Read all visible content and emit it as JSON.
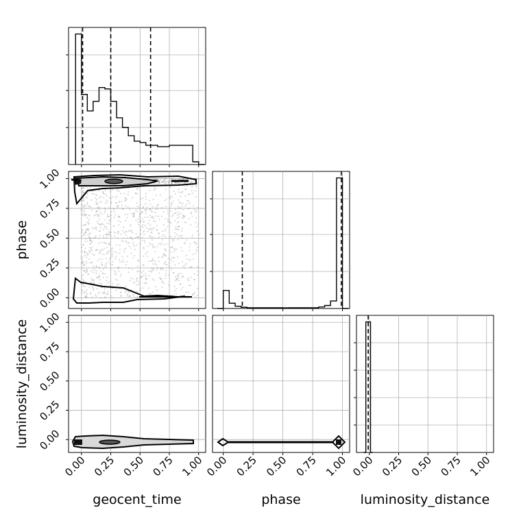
{
  "chart_data": {
    "type": "corner",
    "parameters": [
      "geocent_time",
      "phase",
      "luminosity_distance"
    ],
    "axis_labels": {
      "bottom": [
        "geocent_time",
        "phase",
        "luminosity_distance"
      ],
      "left": [
        "phase",
        "luminosity_distance"
      ]
    },
    "tick_values": [
      0.0,
      0.25,
      0.5,
      0.75,
      1.0
    ],
    "tick_labels": [
      "0.00",
      "0.25",
      "0.50",
      "0.75",
      "1.00"
    ],
    "grid": true,
    "histograms": [
      {
        "parameter": "geocent_time",
        "xlim": [
          -0.11,
          1.06
        ],
        "bin_edges": [
          -0.05,
          0.0,
          0.05,
          0.1,
          0.15,
          0.2,
          0.25,
          0.3,
          0.35,
          0.4,
          0.45,
          0.5,
          0.55,
          0.6,
          0.65,
          0.7,
          0.75,
          0.8,
          0.85,
          0.9,
          0.95,
          1.0,
          1.05
        ],
        "counts": [
          0.95,
          0.51,
          0.39,
          0.46,
          0.56,
          0.55,
          0.46,
          0.34,
          0.27,
          0.21,
          0.17,
          0.16,
          0.14,
          0.14,
          0.13,
          0.13,
          0.14,
          0.14,
          0.14,
          0.14,
          0.02,
          0.0
        ],
        "quantiles": [
          0.01,
          0.25,
          0.59
        ]
      },
      {
        "parameter": "phase",
        "xlim": [
          -0.09,
          1.06
        ],
        "bin_edges": [
          -0.05,
          0.0,
          0.05,
          0.1,
          0.15,
          0.2,
          0.25,
          0.3,
          0.35,
          0.4,
          0.45,
          0.5,
          0.55,
          0.6,
          0.65,
          0.7,
          0.75,
          0.8,
          0.85,
          0.9,
          0.95,
          1.0,
          1.05
        ],
        "counts": [
          0.0,
          0.12,
          0.035,
          0.015,
          0.008,
          0.005,
          0.005,
          0.005,
          0.005,
          0.005,
          0.005,
          0.004,
          0.005,
          0.005,
          0.005,
          0.005,
          0.005,
          0.01,
          0.02,
          0.05,
          0.87,
          0.0
        ],
        "quantiles": [
          0.16,
          0.99
        ]
      },
      {
        "parameter": "luminosity_distance",
        "xlim": [
          -0.11,
          1.06
        ],
        "bin_edges": [
          -0.05,
          -0.03,
          -0.01,
          0.01,
          0.03
        ],
        "counts": [
          0.0,
          1.0,
          1.0,
          0.0
        ],
        "quantiles": [
          -0.01
        ]
      }
    ],
    "pairs": [
      {
        "x": "geocent_time",
        "y": "phase",
        "xlim": [
          -0.11,
          1.06
        ],
        "ylim": [
          -0.09,
          1.06
        ],
        "points": 1500,
        "point_x_range": [
          0.0,
          1.0
        ],
        "point_y_range": [
          0.0,
          1.0
        ]
      },
      {
        "x": "geocent_time",
        "y": "luminosity_distance",
        "xlim": [
          -0.11,
          1.06
        ],
        "ylim": [
          -0.11,
          1.06
        ]
      },
      {
        "x": "phase",
        "y": "luminosity_distance",
        "xlim": [
          -0.09,
          1.06
        ],
        "ylim": [
          -0.11,
          1.06
        ]
      }
    ]
  }
}
